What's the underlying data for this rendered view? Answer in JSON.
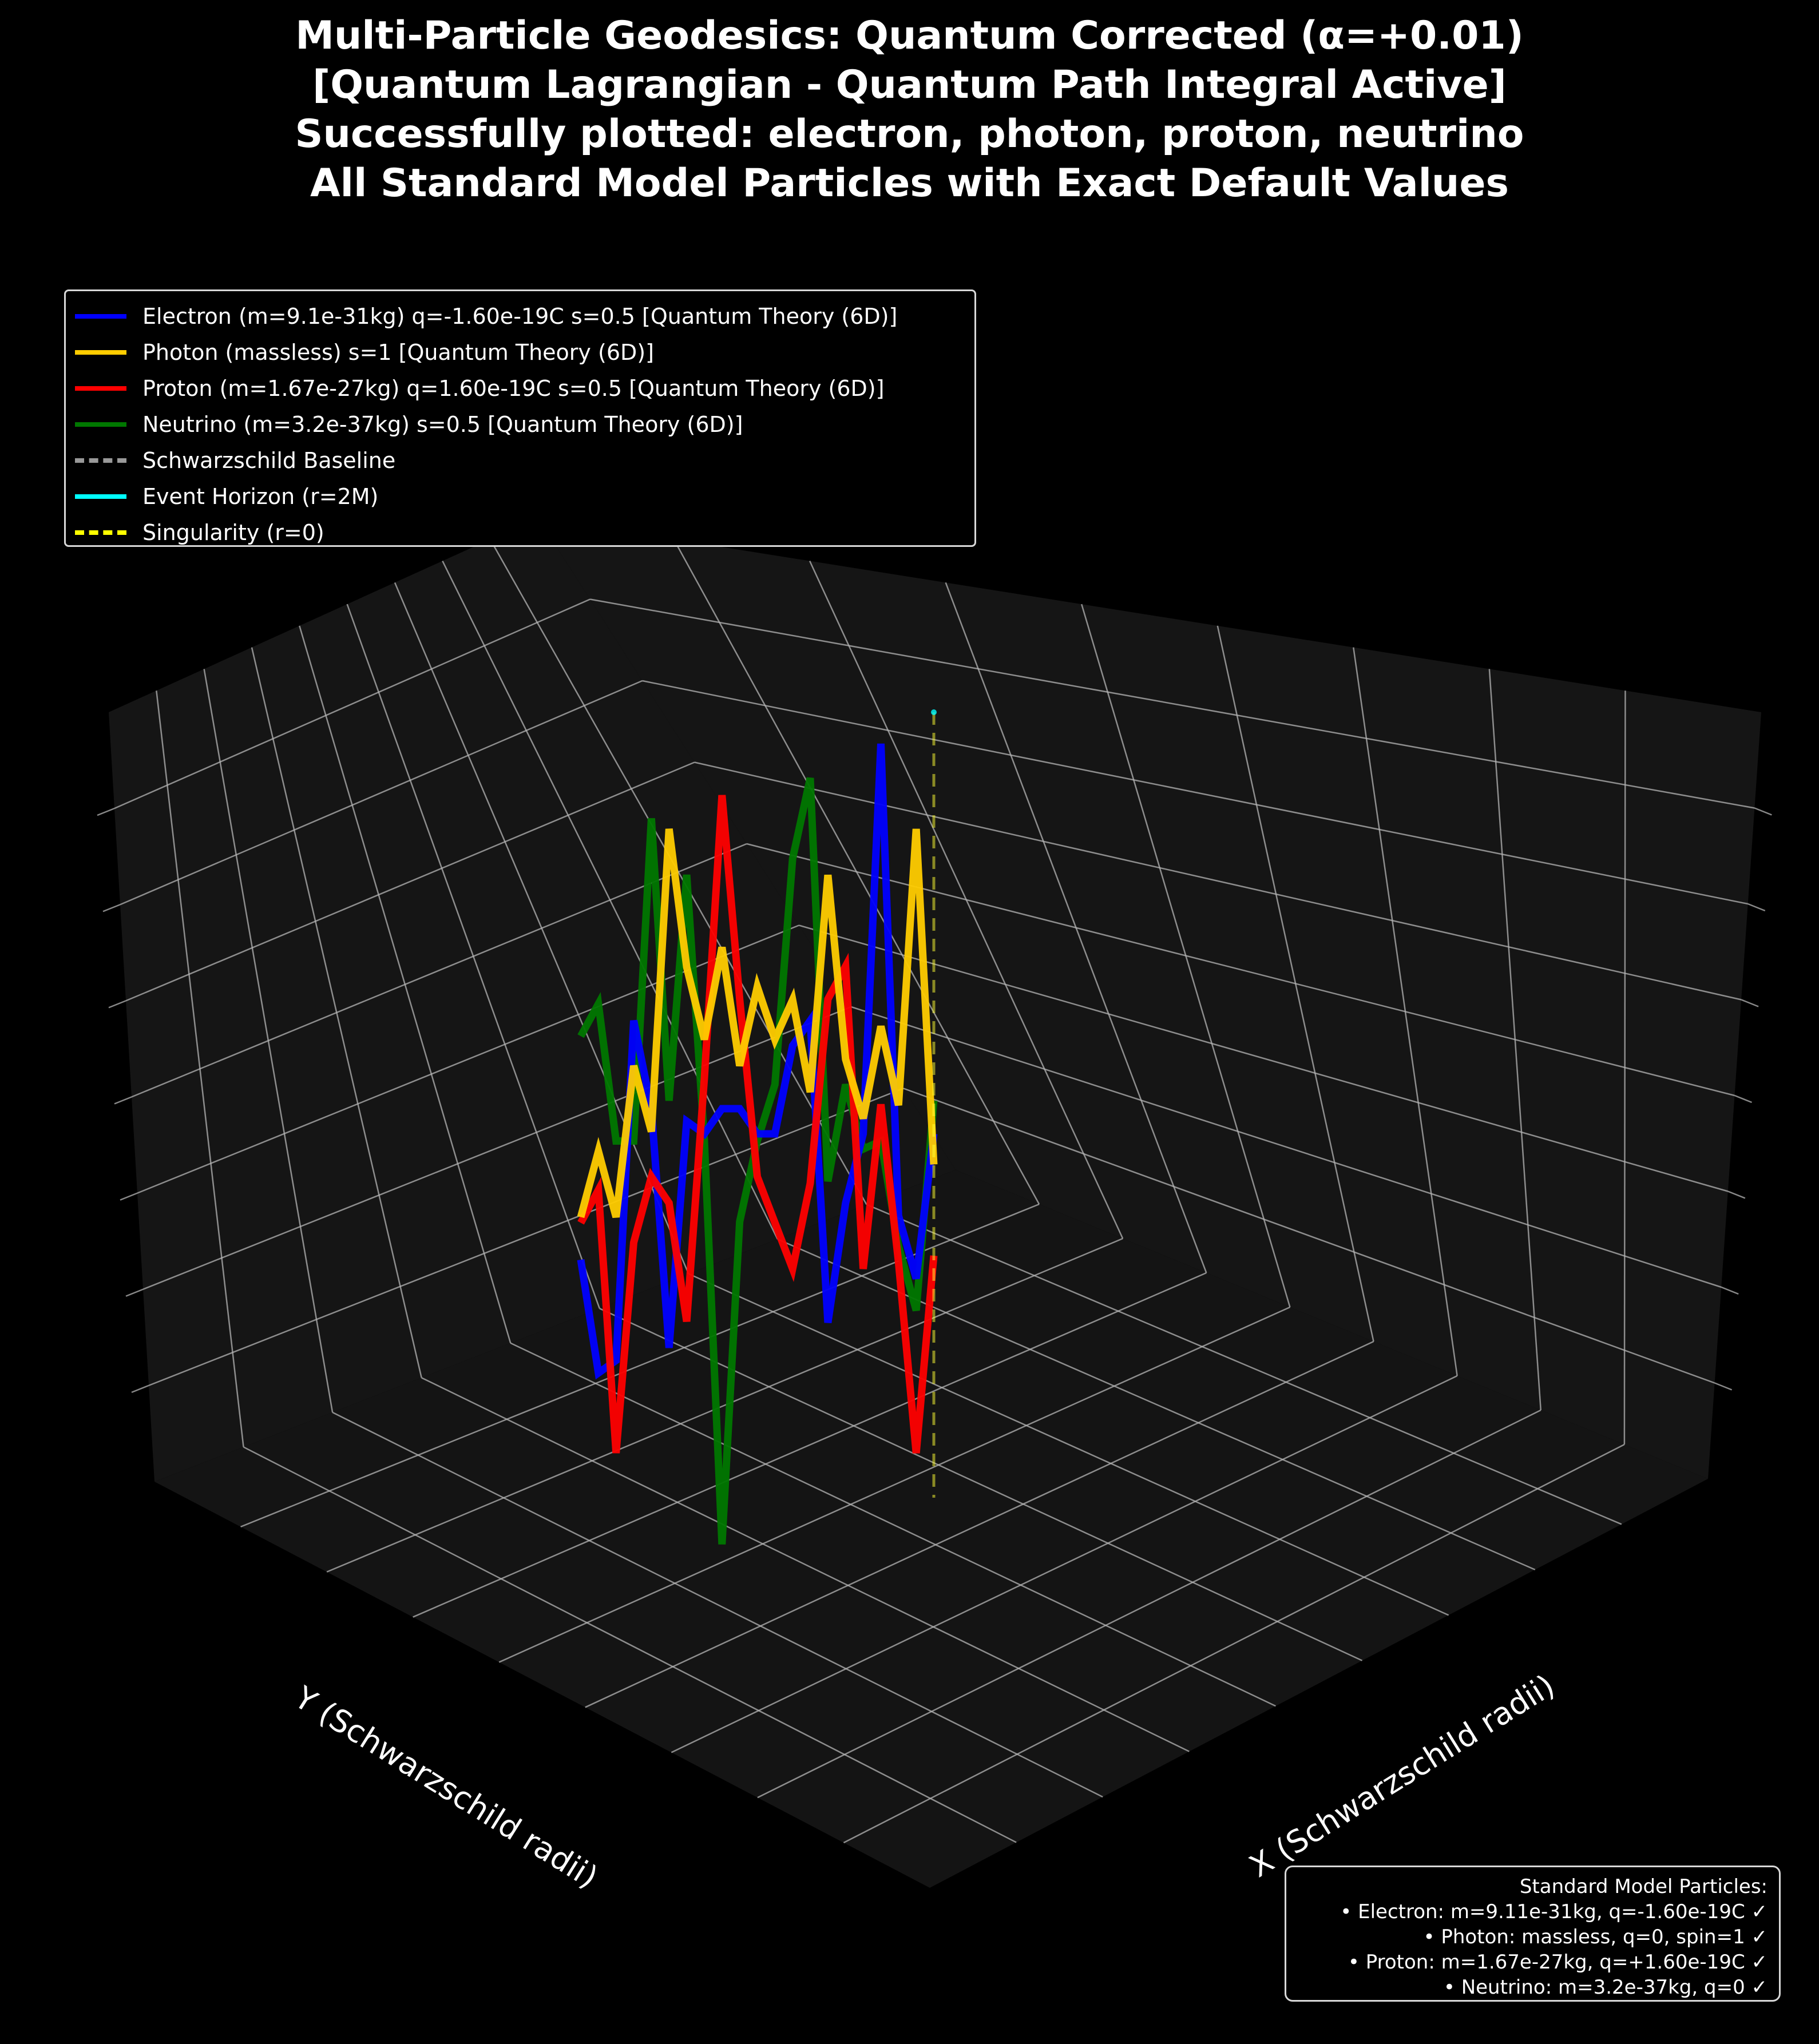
{
  "title_lines": [
    "Multi-Particle Geodesics: Quantum Corrected (α=+0.01)",
    "[Quantum Lagrangian - Quantum Path Integral Active]",
    "Successfully plotted: electron, photon, proton, neutrino",
    "All Standard Model Particles with Exact Default Values"
  ],
  "legend": [
    {
      "label": "Electron (m=9.1e-31kg) q=-1.60e-19C s=0.5 [Quantum Theory (6D)]",
      "color": "#0000ff",
      "style": "solid"
    },
    {
      "label": "Photon (massless) s=1 [Quantum Theory (6D)]",
      "color": "#ffcc00",
      "style": "solid"
    },
    {
      "label": "Proton (m=1.67e-27kg) q=1.60e-19C s=0.5 [Quantum Theory (6D)]",
      "color": "#ff0000",
      "style": "solid"
    },
    {
      "label": "Neutrino (m=3.2e-37kg) s=0.5 [Quantum Theory (6D)]",
      "color": "#007700",
      "style": "solid"
    },
    {
      "label": "Schwarzschild Baseline",
      "color": "#999999",
      "style": "dashed"
    },
    {
      "label": "Event Horizon (r=2M)",
      "color": "#00ffff",
      "style": "solid"
    },
    {
      "label": "Singularity (r=0)",
      "color": "#ffff00",
      "style": "dashed"
    }
  ],
  "info_box": {
    "title": "Standard Model Particles:",
    "lines": [
      "• Electron: m=9.11e-31kg, q=-1.60e-19C ✓",
      "• Photon: massless, q=0, spin=1 ✓",
      "• Proton: m=1.67e-27kg, q=+1.60e-19C ✓",
      "• Neutrino: m=3.2e-37kg, q=0 ✓"
    ]
  },
  "colors": {
    "background": "#000000",
    "pane": "#151515",
    "grid": "#b0b0b0"
  },
  "chart_data": {
    "type": "line",
    "projection": "3d",
    "xlabel": "X (Schwarzschild radii)",
    "ylabel": "Y (Schwarzschild radii)",
    "zlabel": "",
    "grid": true,
    "legend_position": "top-left",
    "series": [
      {
        "name": "Electron (m=9.1e-31kg) q=-1.60e-19C s=0.5 [Quantum Theory (6D)]",
        "color": "#0000ff",
        "values": [
          0.18,
          0.0,
          0.02,
          0.56,
          0.42,
          0.04,
          0.4,
          0.38,
          0.42,
          0.42,
          0.38,
          0.38,
          0.52,
          0.56,
          0.08,
          0.27,
          0.38,
          1.0,
          0.25,
          0.15,
          0.38
        ]
      },
      {
        "name": "Photon (massless) s=1 [Quantum Theory (6D)]",
        "color": "#ffcc00",
        "values": [
          0.35,
          0.45,
          0.35,
          0.58,
          0.48,
          0.94,
          0.73,
          0.62,
          0.76,
          0.58,
          0.7,
          0.62,
          0.68,
          0.54,
          0.87,
          0.59,
          0.5,
          0.64,
          0.52,
          0.94,
          0.43
        ]
      },
      {
        "name": "Proton (m=1.67e-27kg) q=1.60e-19C s=0.5 [Quantum Theory (6D)]",
        "color": "#ff0000",
        "values": [
          0.35,
          0.4,
          0.0,
          0.32,
          0.42,
          0.38,
          0.2,
          0.57,
          1.0,
          0.69,
          0.42,
          0.35,
          0.28,
          0.41,
          0.69,
          0.74,
          0.28,
          0.53,
          0.29,
          0.0,
          0.3
        ]
      },
      {
        "name": "Neutrino (m=3.2e-37kg) s=0.5 [Quantum Theory (6D)]",
        "color": "#007700",
        "values": [
          0.68,
          0.72,
          0.55,
          0.55,
          0.95,
          0.6,
          0.88,
          0.55,
          0.05,
          0.45,
          0.55,
          0.62,
          0.9,
          1.0,
          0.5,
          0.62,
          0.54,
          0.55,
          0.42,
          0.34,
          0.6
        ]
      }
    ],
    "reference_lines": [
      {
        "name": "Singularity (r=0)",
        "style": "dashed",
        "color": "#ffff00"
      }
    ]
  }
}
